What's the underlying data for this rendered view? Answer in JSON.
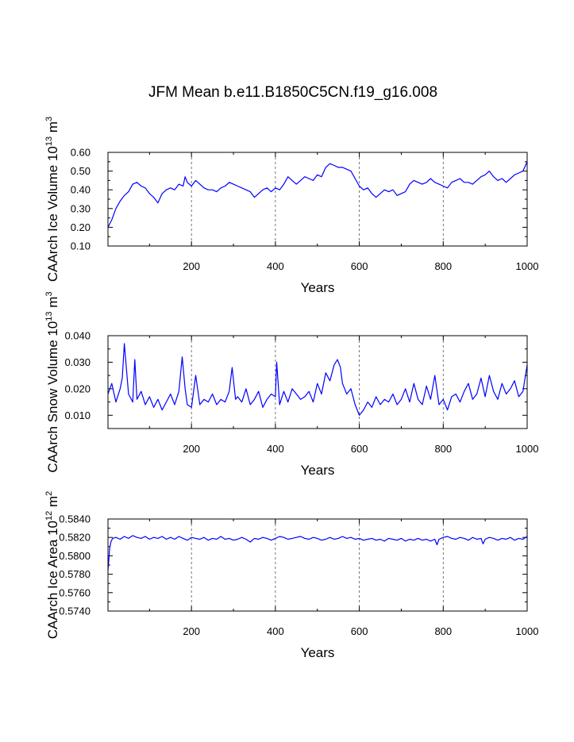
{
  "title": "JFM Mean b.e11.B1850C5CN.f19_g16.008",
  "line_color": "#0000ff",
  "chart_data": [
    {
      "id": "ice-volume",
      "type": "line",
      "xlabel": "Years",
      "ylabel_main": "CAArch Ice Volume 10",
      "ylabel_exp": "13",
      "ylabel_unit": "m",
      "ylabel_unit_exp": "3",
      "xlim": [
        1,
        1000
      ],
      "ylim": [
        0.1,
        0.6
      ],
      "xticks": [
        200,
        400,
        600,
        800,
        1000
      ],
      "xtick_labels": [
        "200",
        "400",
        "600",
        "800",
        "1000"
      ],
      "yticks": [
        0.1,
        0.2,
        0.3,
        0.4,
        0.5,
        0.6
      ],
      "ytick_labels": [
        "0.10",
        "0.20",
        "0.30",
        "0.40",
        "0.50",
        "0.60"
      ],
      "grid_x": [
        200,
        400,
        600,
        800
      ],
      "series": [
        {
          "name": "Ice Volume",
          "x": [
            1,
            10,
            20,
            30,
            40,
            50,
            60,
            70,
            80,
            90,
            100,
            110,
            120,
            130,
            140,
            150,
            160,
            170,
            180,
            185,
            190,
            200,
            210,
            220,
            230,
            240,
            250,
            260,
            270,
            280,
            290,
            300,
            310,
            320,
            330,
            340,
            350,
            360,
            370,
            380,
            390,
            400,
            410,
            420,
            430,
            440,
            450,
            460,
            470,
            480,
            490,
            500,
            510,
            520,
            530,
            540,
            550,
            560,
            570,
            580,
            590,
            600,
            610,
            620,
            630,
            640,
            650,
            660,
            670,
            680,
            690,
            700,
            710,
            720,
            730,
            740,
            750,
            760,
            770,
            780,
            790,
            800,
            810,
            820,
            830,
            840,
            850,
            860,
            870,
            880,
            890,
            900,
            910,
            920,
            930,
            940,
            950,
            960,
            970,
            980,
            990,
            1000
          ],
          "values": [
            0.2,
            0.24,
            0.3,
            0.34,
            0.37,
            0.39,
            0.43,
            0.44,
            0.42,
            0.41,
            0.38,
            0.36,
            0.33,
            0.38,
            0.4,
            0.41,
            0.4,
            0.43,
            0.42,
            0.47,
            0.44,
            0.42,
            0.45,
            0.43,
            0.41,
            0.4,
            0.4,
            0.39,
            0.41,
            0.42,
            0.44,
            0.43,
            0.42,
            0.41,
            0.4,
            0.39,
            0.36,
            0.38,
            0.4,
            0.41,
            0.39,
            0.41,
            0.4,
            0.43,
            0.47,
            0.45,
            0.43,
            0.45,
            0.47,
            0.46,
            0.45,
            0.48,
            0.47,
            0.52,
            0.54,
            0.53,
            0.52,
            0.52,
            0.51,
            0.5,
            0.46,
            0.42,
            0.4,
            0.41,
            0.38,
            0.36,
            0.38,
            0.4,
            0.39,
            0.4,
            0.37,
            0.38,
            0.39,
            0.43,
            0.45,
            0.44,
            0.43,
            0.44,
            0.46,
            0.44,
            0.43,
            0.42,
            0.41,
            0.44,
            0.45,
            0.46,
            0.44,
            0.44,
            0.43,
            0.45,
            0.47,
            0.48,
            0.5,
            0.47,
            0.45,
            0.46,
            0.44,
            0.46,
            0.48,
            0.49,
            0.5,
            0.55
          ]
        }
      ]
    },
    {
      "id": "snow-volume",
      "type": "line",
      "xlabel": "Years",
      "ylabel_main": "CAArch Snow Volume 10",
      "ylabel_exp": "13",
      "ylabel_unit": "m",
      "ylabel_unit_exp": "3",
      "xlim": [
        1,
        1000
      ],
      "ylim": [
        0.005,
        0.04
      ],
      "xticks": [
        200,
        400,
        600,
        800,
        1000
      ],
      "xtick_labels": [
        "200",
        "400",
        "600",
        "800",
        "1000"
      ],
      "yticks": [
        0.01,
        0.02,
        0.03,
        0.04
      ],
      "ytick_labels": [
        "0.010",
        "0.020",
        "0.030",
        "0.040"
      ],
      "grid_x": [
        200,
        400,
        600,
        800
      ],
      "series": [
        {
          "name": "Snow Volume",
          "x": [
            1,
            10,
            20,
            30,
            35,
            40,
            50,
            60,
            65,
            70,
            80,
            90,
            100,
            110,
            120,
            130,
            140,
            150,
            160,
            170,
            178,
            185,
            190,
            200,
            210,
            220,
            230,
            240,
            250,
            260,
            270,
            280,
            290,
            297,
            305,
            310,
            320,
            330,
            340,
            350,
            360,
            370,
            380,
            390,
            400,
            403,
            410,
            420,
            430,
            440,
            450,
            460,
            470,
            480,
            490,
            500,
            510,
            520,
            530,
            540,
            548,
            555,
            560,
            570,
            580,
            590,
            600,
            610,
            620,
            630,
            640,
            650,
            660,
            670,
            680,
            690,
            700,
            710,
            720,
            730,
            740,
            750,
            760,
            770,
            780,
            790,
            800,
            810,
            820,
            830,
            840,
            850,
            860,
            870,
            880,
            890,
            900,
            910,
            920,
            930,
            940,
            950,
            960,
            970,
            980,
            990,
            1000
          ],
          "values": [
            0.018,
            0.022,
            0.015,
            0.02,
            0.024,
            0.037,
            0.018,
            0.015,
            0.031,
            0.016,
            0.019,
            0.014,
            0.017,
            0.013,
            0.016,
            0.012,
            0.015,
            0.018,
            0.014,
            0.019,
            0.032,
            0.02,
            0.014,
            0.013,
            0.025,
            0.014,
            0.016,
            0.015,
            0.018,
            0.014,
            0.016,
            0.015,
            0.019,
            0.028,
            0.016,
            0.017,
            0.015,
            0.02,
            0.014,
            0.016,
            0.019,
            0.013,
            0.016,
            0.018,
            0.017,
            0.03,
            0.014,
            0.019,
            0.015,
            0.02,
            0.018,
            0.016,
            0.017,
            0.019,
            0.015,
            0.022,
            0.018,
            0.026,
            0.023,
            0.029,
            0.031,
            0.028,
            0.022,
            0.018,
            0.02,
            0.014,
            0.01,
            0.012,
            0.015,
            0.013,
            0.017,
            0.014,
            0.016,
            0.015,
            0.018,
            0.014,
            0.016,
            0.02,
            0.015,
            0.022,
            0.016,
            0.014,
            0.021,
            0.016,
            0.025,
            0.014,
            0.016,
            0.012,
            0.017,
            0.018,
            0.015,
            0.019,
            0.022,
            0.016,
            0.018,
            0.024,
            0.017,
            0.025,
            0.019,
            0.016,
            0.022,
            0.018,
            0.02,
            0.023,
            0.017,
            0.019,
            0.029
          ]
        }
      ]
    },
    {
      "id": "ice-area",
      "type": "line",
      "xlabel": "Years",
      "ylabel_main": "CAArch Ice Area 10",
      "ylabel_exp": "12",
      "ylabel_unit": "m",
      "ylabel_unit_exp": "2",
      "xlim": [
        1,
        1000
      ],
      "ylim": [
        0.574,
        0.584
      ],
      "xticks": [
        200,
        400,
        600,
        800,
        1000
      ],
      "xtick_labels": [
        "200",
        "400",
        "600",
        "800",
        "1000"
      ],
      "yticks": [
        0.574,
        0.576,
        0.578,
        0.58,
        0.582,
        0.584
      ],
      "ytick_labels": [
        "0.5740",
        "0.5760",
        "0.5780",
        "0.5800",
        "0.5820",
        "0.5840"
      ],
      "grid_x": [
        200,
        400,
        600,
        800
      ],
      "series": [
        {
          "name": "Ice Area",
          "x": [
            1,
            3,
            5,
            8,
            12,
            20,
            30,
            40,
            50,
            60,
            70,
            80,
            90,
            100,
            110,
            120,
            130,
            140,
            150,
            160,
            170,
            180,
            190,
            200,
            210,
            220,
            230,
            240,
            250,
            260,
            270,
            280,
            290,
            300,
            310,
            320,
            330,
            340,
            350,
            360,
            370,
            380,
            390,
            400,
            410,
            420,
            430,
            440,
            450,
            460,
            470,
            480,
            490,
            500,
            510,
            520,
            530,
            540,
            550,
            560,
            570,
            580,
            590,
            600,
            610,
            620,
            630,
            640,
            650,
            660,
            670,
            680,
            690,
            700,
            710,
            720,
            730,
            740,
            750,
            760,
            770,
            780,
            785,
            790,
            800,
            810,
            820,
            830,
            840,
            850,
            860,
            870,
            880,
            890,
            895,
            900,
            910,
            920,
            930,
            940,
            950,
            960,
            970,
            980,
            990,
            1000
          ],
          "values": [
            0.5784,
            0.5796,
            0.5808,
            0.5815,
            0.5819,
            0.582,
            0.5818,
            0.5821,
            0.5819,
            0.5822,
            0.582,
            0.5819,
            0.5821,
            0.5818,
            0.582,
            0.5819,
            0.5821,
            0.5818,
            0.582,
            0.5818,
            0.5821,
            0.5819,
            0.5817,
            0.582,
            0.5819,
            0.5818,
            0.582,
            0.5817,
            0.5819,
            0.5818,
            0.5821,
            0.5818,
            0.5819,
            0.5817,
            0.5818,
            0.582,
            0.5818,
            0.5815,
            0.5819,
            0.5818,
            0.582,
            0.5819,
            0.5817,
            0.5819,
            0.5821,
            0.582,
            0.5818,
            0.5819,
            0.582,
            0.5821,
            0.5819,
            0.5818,
            0.582,
            0.5819,
            0.5817,
            0.5818,
            0.582,
            0.5818,
            0.5819,
            0.5821,
            0.5819,
            0.582,
            0.5818,
            0.5819,
            0.5817,
            0.5818,
            0.5819,
            0.5817,
            0.5818,
            0.5816,
            0.5819,
            0.5818,
            0.5817,
            0.5819,
            0.5816,
            0.5818,
            0.5817,
            0.5819,
            0.5817,
            0.5818,
            0.5816,
            0.5818,
            0.5812,
            0.5818,
            0.582,
            0.5821,
            0.5819,
            0.5818,
            0.582,
            0.5819,
            0.5817,
            0.582,
            0.5818,
            0.5819,
            0.5813,
            0.5818,
            0.582,
            0.5819,
            0.5817,
            0.5819,
            0.5818,
            0.582,
            0.5817,
            0.5819,
            0.5818,
            0.5821
          ]
        }
      ]
    }
  ]
}
